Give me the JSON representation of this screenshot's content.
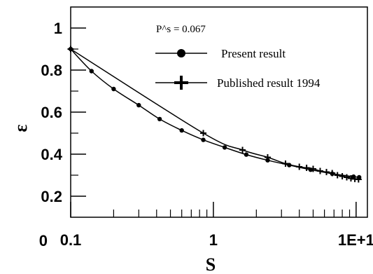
{
  "chart_data": {
    "type": "line",
    "xlabel": "S",
    "ylabel": "ε",
    "x_scale": "log",
    "xlim": [
      0.1,
      12
    ],
    "ylim": [
      0.1,
      1.1
    ],
    "x_tick_values": [
      0.1,
      1,
      10
    ],
    "x_tick_labels": [
      "0.1",
      "1",
      "1E+1"
    ],
    "y_tick_values": [
      0.2,
      0.4,
      0.6,
      0.8,
      1
    ],
    "y_tick_labels": [
      "0.2",
      "0.4",
      "0.6",
      "0.8",
      "1"
    ],
    "corner_label": "0",
    "annotation": "P^s = 0.067",
    "grid": false,
    "legend_position": "top-right",
    "series": [
      {
        "name": "Present result",
        "marker": "circle",
        "x": [
          0.1,
          0.14,
          0.2,
          0.3,
          0.42,
          0.6,
          0.85,
          1.2,
          1.7,
          2.4,
          3.4,
          4.8,
          6.8,
          9.6,
          10.5
        ],
        "y": [
          0.9,
          0.795,
          0.71,
          0.633,
          0.567,
          0.513,
          0.468,
          0.432,
          0.398,
          0.371,
          0.348,
          0.326,
          0.307,
          0.293,
          0.29
        ]
      },
      {
        "name": "Published result 1994",
        "marker": "plus",
        "x": [
          0.1,
          0.85,
          1.6,
          2.4,
          3.2,
          4.0,
          4.5,
          5.0,
          5.6,
          6.2,
          6.8,
          7.4,
          8.0,
          8.6,
          9.2,
          9.8,
          10.4
        ],
        "y": [
          0.9,
          0.5,
          0.42,
          0.385,
          0.355,
          0.34,
          0.335,
          0.33,
          0.32,
          0.315,
          0.31,
          0.3,
          0.295,
          0.29,
          0.285,
          0.282,
          0.28
        ]
      }
    ]
  }
}
